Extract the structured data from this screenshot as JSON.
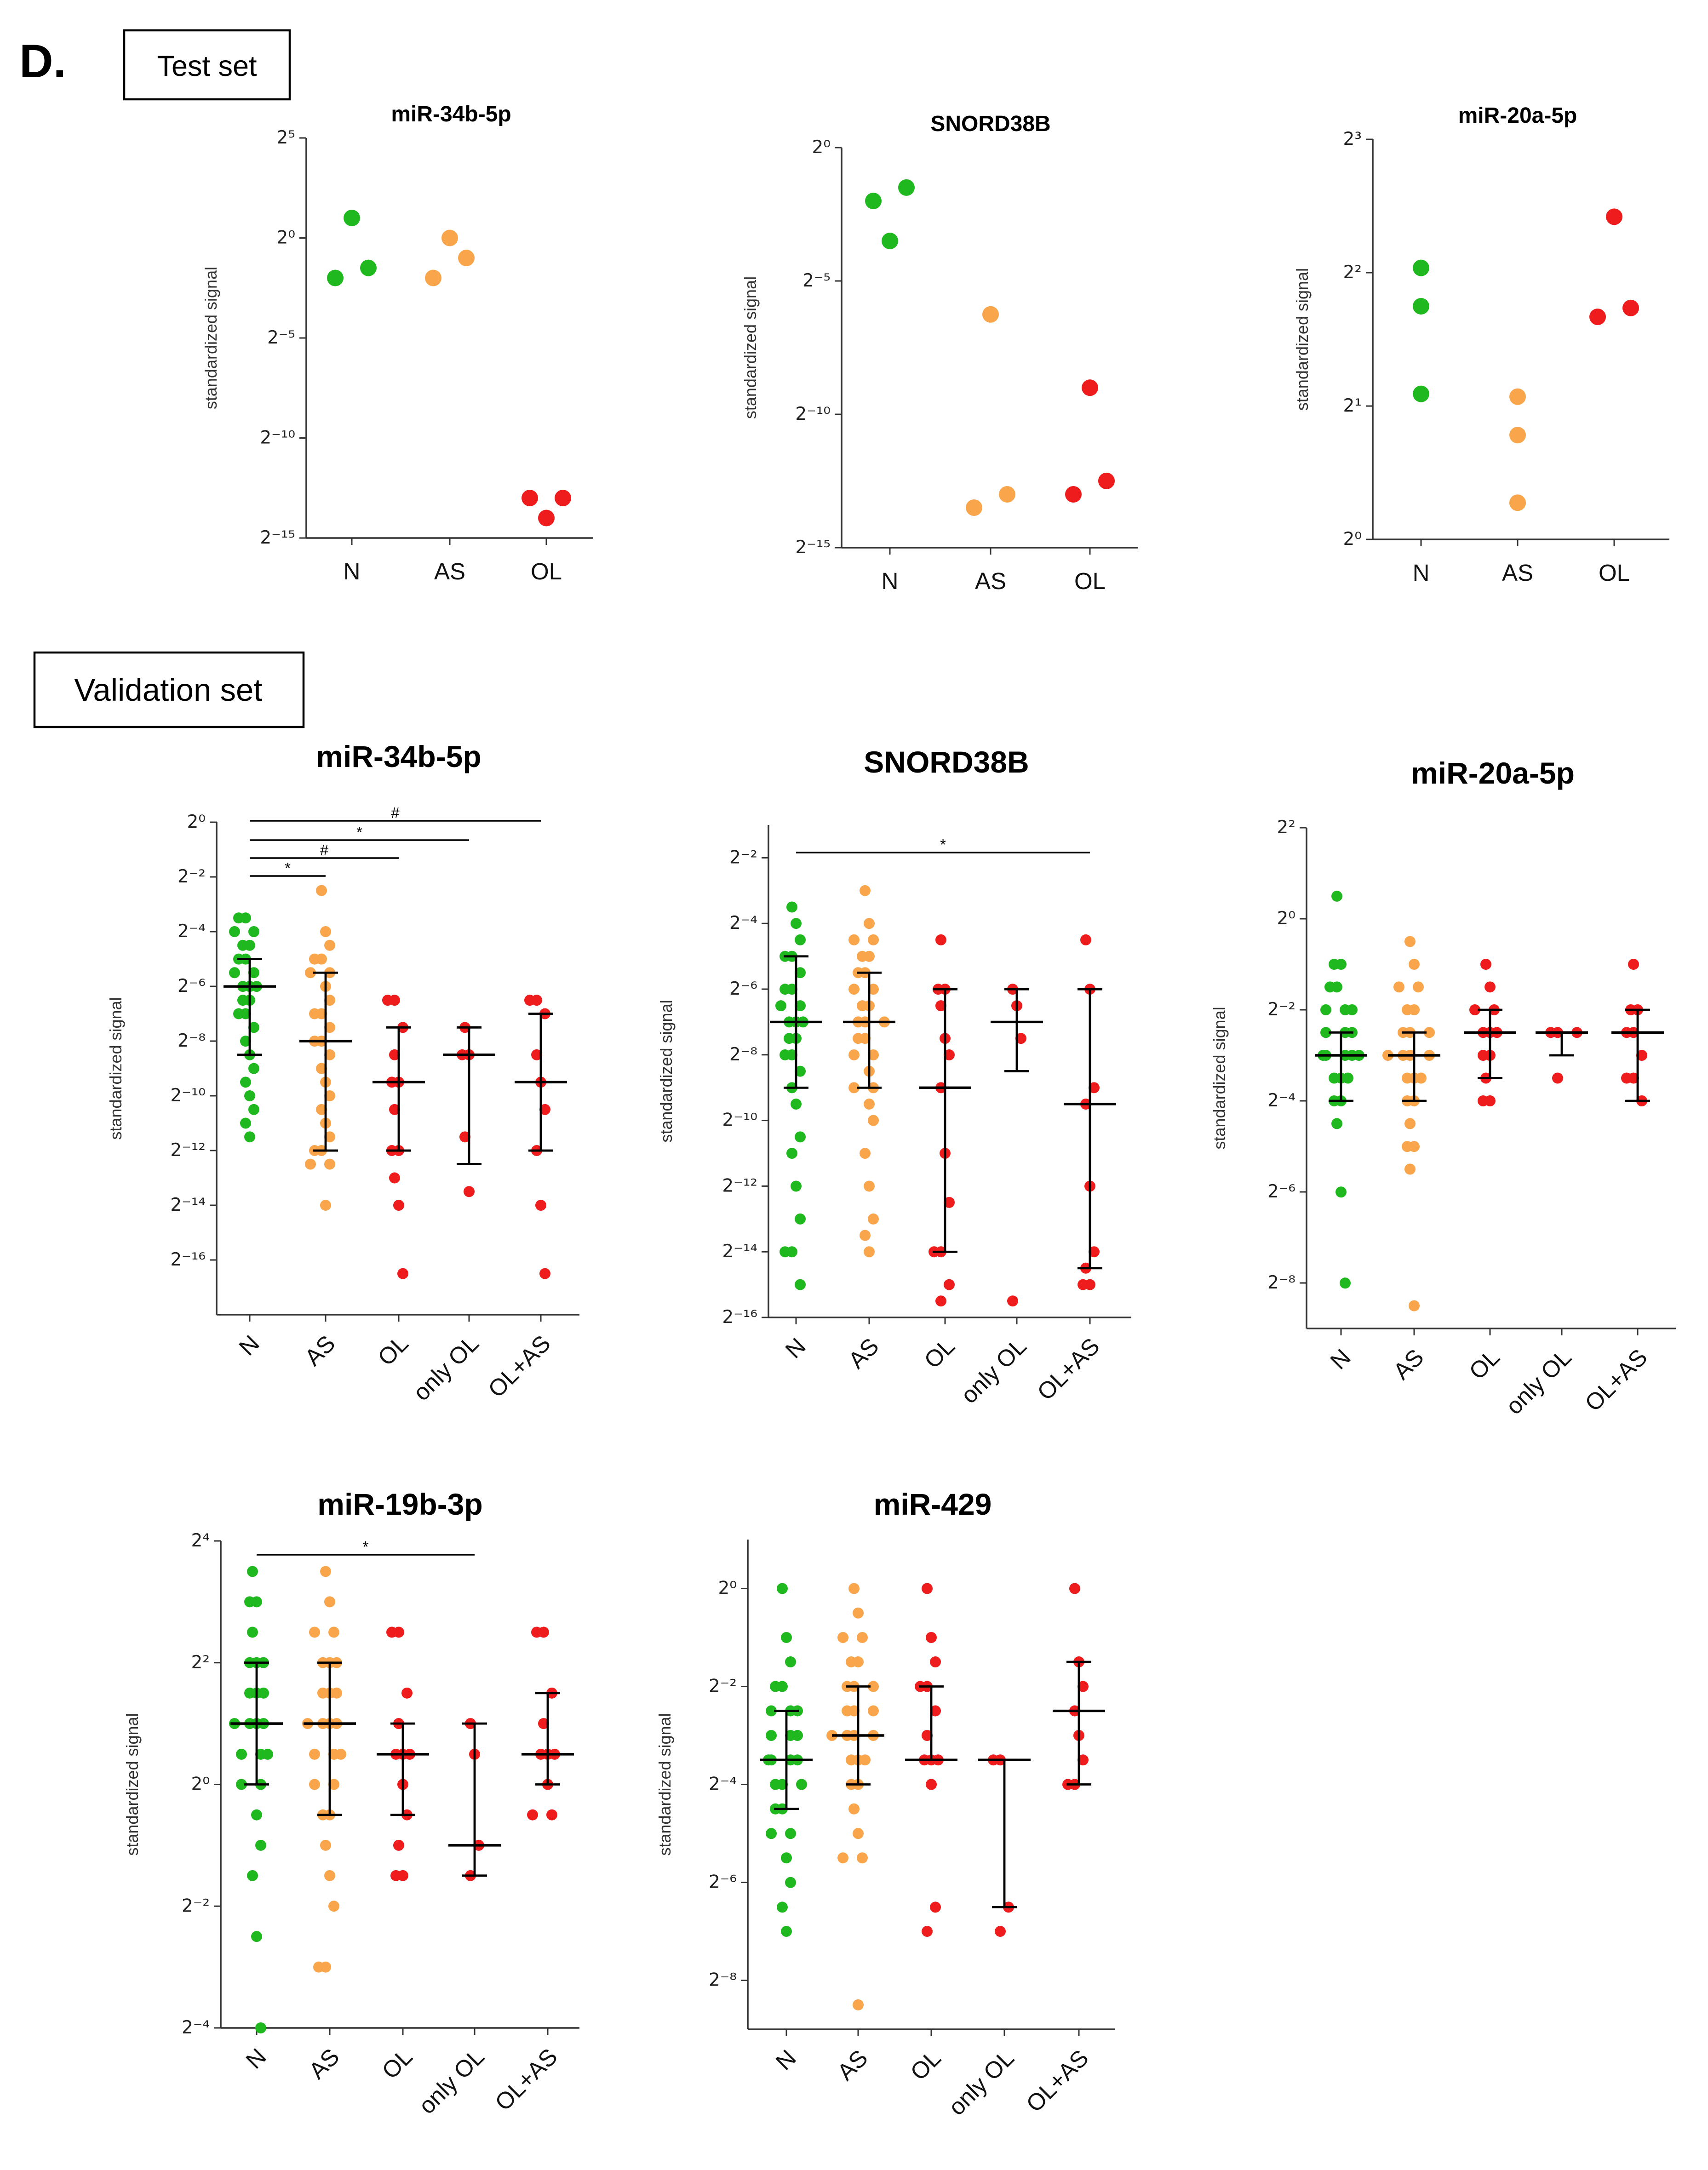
{
  "panel_label": "D.",
  "sections": [
    "Test set",
    "Validation set"
  ],
  "chart_data": [
    {
      "type": "dot",
      "title": "miR-34b-5p",
      "ylabel": "standardized signal",
      "log_base": 2,
      "categories": [
        "N",
        "AS",
        "OL"
      ],
      "colors": [
        "#1fb81f",
        "#f9a54c",
        "#ee1c1c"
      ],
      "values": [
        [
          0.25,
          2,
          0.354
        ],
        [
          0.25,
          1,
          0.5
        ],
        [
          0.000122,
          6.1e-05,
          0.000122
        ]
      ],
      "ylim": [
        3.0517578125e-05,
        32
      ],
      "yticks": [
        {
          "value": 32,
          "label": "2⁵"
        },
        {
          "value": 1,
          "label": "2⁰"
        },
        {
          "value": 0.03125,
          "label": "2⁻⁵"
        },
        {
          "value": 0.0009765625,
          "label": "2⁻¹⁰"
        },
        {
          "value": 3.0517578125e-05,
          "label": "2⁻¹⁵"
        }
      ]
    },
    {
      "type": "dot",
      "title": "SNORD38B",
      "ylabel": "standardized signal",
      "log_base": 2,
      "categories": [
        "N",
        "AS",
        "OL"
      ],
      "colors": [
        "#1fb81f",
        "#f9a54c",
        "#ee1c1c"
      ],
      "values": [
        [
          0.25,
          0.0884,
          0.354
        ],
        [
          8.63e-05,
          0.0131,
          0.000122
        ],
        [
          0.000122,
          0.00195,
          0.000173
        ]
      ],
      "ylim": [
        3.0517578125e-05,
        1
      ],
      "yticks": [
        {
          "value": 1,
          "label": "2⁰"
        },
        {
          "value": 0.03125,
          "label": "2⁻⁵"
        },
        {
          "value": 0.0009765625,
          "label": "2⁻¹⁰"
        },
        {
          "value": 3.0517578125e-05,
          "label": "2⁻¹⁵"
        }
      ]
    },
    {
      "type": "dot",
      "title": "miR-20a-5p",
      "ylabel": "standardized signal",
      "log_base": 2,
      "categories": [
        "N",
        "AS",
        "OL"
      ],
      "colors": [
        "#1fb81f",
        "#f9a54c",
        "#ee1c1c"
      ],
      "values": [
        [
          4.1,
          3.36,
          2.13
        ],
        [
          2.1,
          1.72,
          1.21
        ],
        [
          3.18,
          5.35,
          3.33
        ]
      ],
      "ylim": [
        1,
        8
      ],
      "yticks": [
        {
          "value": 8,
          "label": "2³"
        },
        {
          "value": 4,
          "label": "2²"
        },
        {
          "value": 2,
          "label": "2¹"
        },
        {
          "value": 1,
          "label": "2⁰"
        }
      ]
    },
    {
      "type": "dot",
      "title": "miR-34b-5p",
      "ylabel": "standardized signal",
      "log_base": 2,
      "categories": [
        "N",
        "AS",
        "OL",
        "only OL",
        "OL+AS"
      ],
      "colors": [
        "#1fb81f",
        "#f9a54c",
        "#ee1c1c",
        "#ee1c1c",
        "#ee1c1c"
      ],
      "values": [
        [
          0.0884,
          0.0884,
          0.0625,
          0.0625,
          0.0442,
          0.0442,
          0.0312,
          0.0312,
          0.0221,
          0.0221,
          0.0156,
          0.0156,
          0.0156,
          0.011,
          0.011,
          0.00781,
          0.00781,
          0.00552,
          0.0039,
          0.00276,
          0.00195,
          0.00138,
          0.000977,
          0.00069,
          0.000488,
          0.000345
        ],
        [
          0.177,
          0.0625,
          0.0442,
          0.0312,
          0.0312,
          0.0221,
          0.0221,
          0.0156,
          0.011,
          0.00781,
          0.00781,
          0.00552,
          0.0039,
          0.0039,
          0.00276,
          0.00195,
          0.00138,
          0.000977,
          0.00069,
          0.000488,
          0.000345,
          0.000244,
          0.000244,
          0.000173,
          0.000173,
          6.1e-05
        ],
        [
          0.011,
          0.011,
          0.00552,
          0.00276,
          0.00138,
          0.00138,
          0.00069,
          0.000244,
          0.000244,
          0.000122,
          6.1e-05,
          1.08e-05
        ],
        [
          0.00552,
          0.00276,
          0.00276,
          0.000345,
          8.63e-05
        ],
        [
          0.011,
          0.011,
          0.00781,
          0.00276,
          0.00138,
          0.00069,
          0.000244,
          6.1e-05,
          1.08e-05
        ]
      ],
      "median": [
        0.0156,
        0.0039,
        0.00138,
        0.00276,
        0.00138
      ],
      "q1": [
        0.00276,
        0.000244,
        0.000244,
        0.000173,
        0.000244
      ],
      "q3": [
        0.0312,
        0.0221,
        0.00552,
        0.00552,
        0.00781
      ],
      "comparisons": [
        {
          "between": [
            0,
            4
          ],
          "label": "#"
        },
        {
          "between": [
            0,
            3
          ],
          "label": "*"
        },
        {
          "between": [
            0,
            2
          ],
          "label": "#"
        },
        {
          "between": [
            0,
            1
          ],
          "label": "*"
        }
      ],
      "ylim": [
        3.814697265625e-06,
        1
      ],
      "yticks": [
        {
          "value": 1,
          "label": "2⁰"
        },
        {
          "value": 0.25,
          "label": "2⁻²"
        },
        {
          "value": 0.0625,
          "label": "2⁻⁴"
        },
        {
          "value": 0.015625,
          "label": "2⁻⁶"
        },
        {
          "value": 0.00390625,
          "label": "2⁻⁸"
        },
        {
          "value": 0.0009765625,
          "label": "2⁻¹⁰"
        },
        {
          "value": 0.000244140625,
          "label": "2⁻¹²"
        },
        {
          "value": 6.103515625e-05,
          "label": "2⁻¹⁴"
        },
        {
          "value": 1.52587890625e-05,
          "label": "2⁻¹⁶"
        }
      ]
    },
    {
      "type": "dot",
      "title": "SNORD38B",
      "ylabel": "standardized signal",
      "log_base": 2,
      "categories": [
        "N",
        "AS",
        "OL",
        "only OL",
        "OL+AS"
      ],
      "colors": [
        "#1fb81f",
        "#f9a54c",
        "#ee1c1c",
        "#ee1c1c",
        "#ee1c1c"
      ],
      "values": [
        [
          0.0884,
          0.0625,
          0.0442,
          0.0312,
          0.0312,
          0.0221,
          0.0156,
          0.0156,
          0.011,
          0.011,
          0.00781,
          0.00781,
          0.00781,
          0.00552,
          0.00552,
          0.0039,
          0.0039,
          0.00276,
          0.00195,
          0.00138,
          0.00069,
          0.000488,
          0.000244,
          0.000122,
          6.1e-05,
          6.1e-05,
          3.05e-05
        ],
        [
          0.125,
          0.0625,
          0.0442,
          0.0442,
          0.0312,
          0.0312,
          0.0221,
          0.0221,
          0.0156,
          0.0156,
          0.011,
          0.011,
          0.00781,
          0.00781,
          0.00781,
          0.00552,
          0.00552,
          0.0039,
          0.0039,
          0.00276,
          0.00195,
          0.00195,
          0.00138,
          0.000977,
          0.000488,
          0.000244,
          0.000122,
          8.63e-05,
          6.1e-05
        ],
        [
          0.0442,
          0.0156,
          0.0156,
          0.011,
          0.00552,
          0.0039,
          0.00195,
          0.000488,
          0.000173,
          6.1e-05,
          6.1e-05,
          3.05e-05,
          2.16e-05
        ],
        [
          0.0156,
          0.011,
          0.00552,
          2.16e-05
        ],
        [
          0.0442,
          0.0156,
          0.00195,
          0.00138,
          0.000244,
          6.1e-05,
          4.32e-05,
          3.05e-05,
          3.05e-05
        ]
      ],
      "median": [
        0.00781,
        0.00781,
        0.00195,
        0.00781,
        0.00138
      ],
      "q1": [
        0.00195,
        0.00195,
        6.1e-05,
        0.00276,
        4.32e-05
      ],
      "q3": [
        0.0312,
        0.0221,
        0.0156,
        0.0156,
        0.0156
      ],
      "comparisons": [
        {
          "between": [
            0,
            4
          ],
          "label": "*"
        }
      ],
      "ylim": [
        1.52587890625e-05,
        0.5
      ],
      "yticks": [
        {
          "value": 0.25,
          "label": "2⁻²"
        },
        {
          "value": 0.0625,
          "label": "2⁻⁴"
        },
        {
          "value": 0.015625,
          "label": "2⁻⁶"
        },
        {
          "value": 0.00390625,
          "label": "2⁻⁸"
        },
        {
          "value": 0.0009765625,
          "label": "2⁻¹⁰"
        },
        {
          "value": 0.000244140625,
          "label": "2⁻¹²"
        },
        {
          "value": 6.103515625e-05,
          "label": "2⁻¹⁴"
        },
        {
          "value": 1.52587890625e-05,
          "label": "2⁻¹⁶"
        }
      ]
    },
    {
      "type": "dot",
      "title": "miR-20a-5p",
      "ylabel": "standardized signal",
      "log_base": 2,
      "categories": [
        "N",
        "AS",
        "OL",
        "only OL",
        "OL+AS"
      ],
      "colors": [
        "#1fb81f",
        "#f9a54c",
        "#ee1c1c",
        "#ee1c1c",
        "#ee1c1c"
      ],
      "values": [
        [
          1.41,
          0.5,
          0.5,
          0.354,
          0.354,
          0.25,
          0.25,
          0.25,
          0.177,
          0.177,
          0.177,
          0.125,
          0.125,
          0.125,
          0.125,
          0.125,
          0.0884,
          0.0884,
          0.0884,
          0.0625,
          0.0625,
          0.0442,
          0.0156,
          0.0039
        ],
        [
          0.707,
          0.5,
          0.354,
          0.354,
          0.25,
          0.25,
          0.177,
          0.177,
          0.177,
          0.125,
          0.125,
          0.125,
          0.125,
          0.0884,
          0.0884,
          0.0884,
          0.0625,
          0.0625,
          0.0442,
          0.0312,
          0.0312,
          0.0221,
          0.00276
        ],
        [
          0.5,
          0.354,
          0.25,
          0.25,
          0.177,
          0.177,
          0.177,
          0.125,
          0.125,
          0.0884,
          0.0625,
          0.0625
        ],
        [
          0.177,
          0.177,
          0.177,
          0.0884
        ],
        [
          0.5,
          0.25,
          0.25,
          0.177,
          0.177,
          0.125,
          0.0884,
          0.0884,
          0.0625
        ]
      ],
      "median": [
        0.125,
        0.125,
        0.177,
        0.177,
        0.177
      ],
      "q1": [
        0.0625,
        0.0625,
        0.0884,
        0.125,
        0.0625
      ],
      "q3": [
        0.177,
        0.177,
        0.25,
        0.177,
        0.25
      ],
      "ylim": [
        0.001953125,
        4
      ],
      "yticks": [
        {
          "value": 4,
          "label": "2²"
        },
        {
          "value": 1,
          "label": "2⁰"
        },
        {
          "value": 0.25,
          "label": "2⁻²"
        },
        {
          "value": 0.0625,
          "label": "2⁻⁴"
        },
        {
          "value": 0.015625,
          "label": "2⁻⁶"
        },
        {
          "value": 0.00390625,
          "label": "2⁻⁸"
        }
      ]
    },
    {
      "type": "dot",
      "title": "miR-19b-3p",
      "ylabel": "standardized signal",
      "log_base": 2,
      "categories": [
        "N",
        "AS",
        "OL",
        "only OL",
        "OL+AS"
      ],
      "colors": [
        "#1fb81f",
        "#f9a54c",
        "#ee1c1c",
        "#ee1c1c",
        "#ee1c1c"
      ],
      "values": [
        [
          11.3,
          8,
          8,
          5.66,
          4,
          4,
          4,
          2.83,
          2.83,
          2.83,
          2,
          2,
          2,
          2,
          1.41,
          1.41,
          1.41,
          1,
          1,
          0.707,
          0.5,
          0.354,
          0.177,
          0.0625
        ],
        [
          11.3,
          8,
          5.66,
          5.66,
          4,
          4,
          4,
          2.83,
          2.83,
          2.83,
          2,
          2,
          2,
          2,
          1.41,
          1.41,
          1.41,
          1,
          1,
          0.707,
          0.707,
          0.5,
          0.354,
          0.25,
          0.125,
          0.125
        ],
        [
          5.66,
          5.66,
          2.83,
          2,
          1.41,
          1.41,
          1.41,
          1,
          0.707,
          0.5,
          0.354,
          0.354
        ],
        [
          2,
          1.41,
          0.5,
          0.354
        ],
        [
          5.66,
          5.66,
          2.83,
          2,
          1.41,
          1.41,
          1.41,
          1,
          0.707,
          0.707
        ]
      ],
      "median": [
        2,
        2,
        1.41,
        0.5,
        1.41
      ],
      "q1": [
        1,
        0.707,
        0.707,
        0.354,
        1
      ],
      "q3": [
        4,
        4,
        2,
        2,
        2.83
      ],
      "comparisons": [
        {
          "between": [
            0,
            3
          ],
          "label": "*"
        }
      ],
      "ylim": [
        0.0625,
        16
      ],
      "yticks": [
        {
          "value": 16,
          "label": "2⁴"
        },
        {
          "value": 4,
          "label": "2²"
        },
        {
          "value": 1,
          "label": "2⁰"
        },
        {
          "value": 0.25,
          "label": "2⁻²"
        },
        {
          "value": 0.0625,
          "label": "2⁻⁴"
        }
      ]
    },
    {
      "type": "dot",
      "title": "miR-429",
      "ylabel": "standardized signal",
      "log_base": 2,
      "categories": [
        "N",
        "AS",
        "OL",
        "only OL",
        "OL+AS"
      ],
      "colors": [
        "#1fb81f",
        "#f9a54c",
        "#ee1c1c",
        "#ee1c1c",
        "#ee1c1c"
      ],
      "values": [
        [
          1,
          0.5,
          0.354,
          0.25,
          0.25,
          0.177,
          0.177,
          0.177,
          0.125,
          0.125,
          0.125,
          0.0884,
          0.0884,
          0.0884,
          0.0884,
          0.0625,
          0.0625,
          0.0625,
          0.0442,
          0.0442,
          0.0312,
          0.0312,
          0.0221,
          0.0156,
          0.011,
          0.00781
        ],
        [
          1,
          0.707,
          0.5,
          0.5,
          0.354,
          0.354,
          0.25,
          0.25,
          0.25,
          0.177,
          0.177,
          0.177,
          0.125,
          0.125,
          0.125,
          0.125,
          0.0884,
          0.0884,
          0.0884,
          0.0625,
          0.0625,
          0.0442,
          0.0312,
          0.0221,
          0.0221,
          0.00276
        ],
        [
          1,
          0.5,
          0.354,
          0.25,
          0.25,
          0.177,
          0.125,
          0.0884,
          0.0884,
          0.0884,
          0.0625,
          0.011,
          0.00781
        ],
        [
          0.0884,
          0.0884,
          0.011,
          0.00781
        ],
        [
          1,
          0.354,
          0.25,
          0.177,
          0.125,
          0.0884,
          0.0625,
          0.0625
        ]
      ],
      "median": [
        0.0884,
        0.125,
        0.0884,
        0.0884,
        0.177
      ],
      "q1": [
        0.0442,
        0.0625,
        0.0884,
        0.011,
        0.0625
      ],
      "q3": [
        0.177,
        0.25,
        0.25,
        0.0884,
        0.354
      ],
      "ylim": [
        0.001953125,
        2
      ],
      "yticks": [
        {
          "value": 1,
          "label": "2⁰"
        },
        {
          "value": 0.25,
          "label": "2⁻²"
        },
        {
          "value": 0.0625,
          "label": "2⁻⁴"
        },
        {
          "value": 0.015625,
          "label": "2⁻⁶"
        },
        {
          "value": 0.00390625,
          "label": "2⁻⁸"
        }
      ]
    }
  ]
}
